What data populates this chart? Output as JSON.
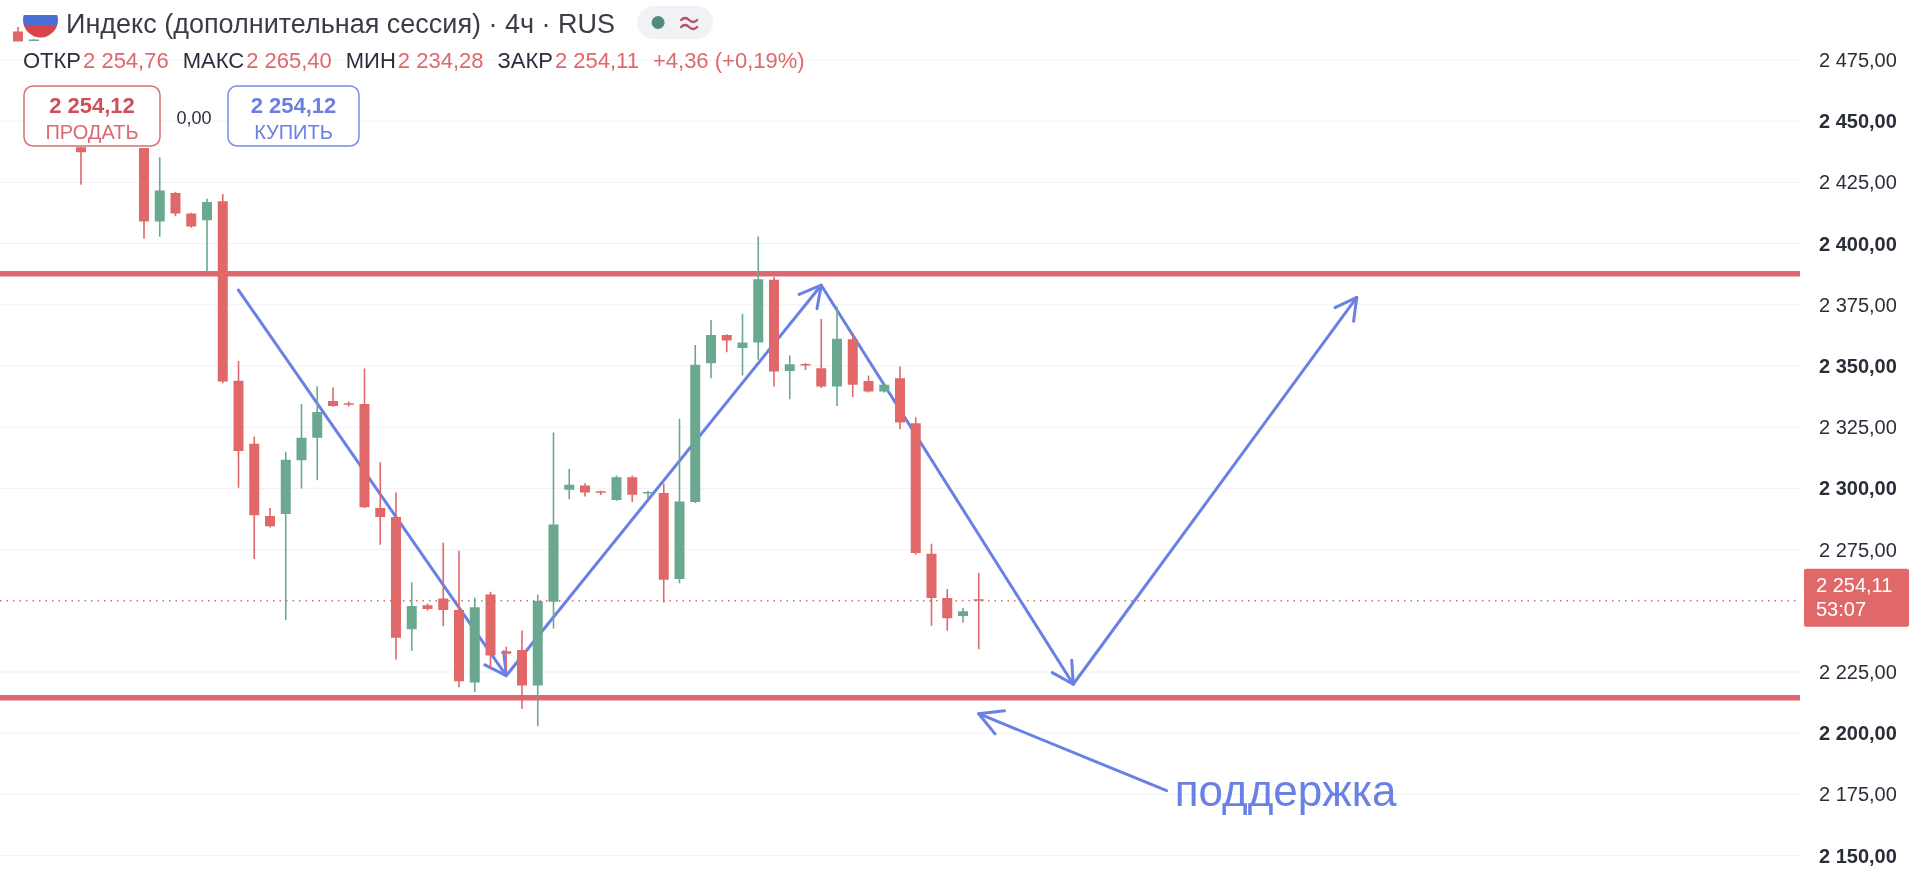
{
  "chart_data": {
    "type": "candlestick",
    "title": "Индекс (дополнительная сессия) · 4ч · RUS",
    "annotations": [
      "ОТКР",
      "2 254,76",
      "МАКС",
      "2 265,40",
      "МИН",
      "2 234,28",
      "ЗАКР",
      "2 254,11",
      "+4,36 (+0,19%)",
      "2 254,12",
      "ПРОДАТЬ",
      "0,00",
      "2 254,12",
      "КУПИТЬ"
    ],
    "categories": [
      null,
      null,
      null,
      null,
      null,
      null,
      null,
      null,
      null,
      null,
      null,
      null,
      null,
      null,
      null,
      null,
      null,
      null,
      null,
      null,
      null,
      null,
      null,
      null,
      null,
      null,
      null,
      null,
      null,
      null,
      null,
      null,
      null,
      null,
      null,
      null,
      null,
      null,
      null,
      null,
      null,
      null,
      null,
      null,
      null,
      null,
      null,
      null,
      null,
      null,
      null,
      null,
      null,
      null,
      null,
      null,
      null,
      null,
      null,
      null,
      null,
      null,
      null,
      null,
      null,
      null,
      null,
      null,
      null,
      null,
      null,
      null,
      null,
      null,
      null,
      null,
      null,
      null,
      null,
      null,
      null,
      null,
      null,
      null,
      null,
      null,
      null,
      null,
      null,
      null,
      null,
      null,
      null,
      null,
      null,
      null,
      null,
      null,
      null,
      null,
      null,
      null,
      null,
      null,
      null,
      null,
      null,
      null,
      null,
      null,
      null,
      null,
      null
    ],
    "ohlc": [
      [
        2486.6,
        2488.5,
        2482.5,
        2482.5
      ],
      [
        2483.0,
        2483.6,
        2482.8,
        2483.4
      ],
      null,
      null,
      [
        2439.3,
        2439.5,
        2424.0,
        2437.3
      ],
      null,
      null,
      null,
      [
        2439.0,
        2439.0,
        2402.0,
        2409.0
      ],
      [
        2409.0,
        2435.3,
        2402.8,
        2421.7
      ],
      [
        2420.7,
        2421.2,
        2411.2,
        2412.3
      ],
      [
        2412.3,
        2412.6,
        2406.5,
        2407.0
      ],
      [
        2409.5,
        2418.3,
        2388.7,
        2417.0
      ],
      [
        2417.3,
        2420.3,
        2343.0,
        2343.7
      ],
      [
        2344.0,
        2352.0,
        2300.3,
        2315.3
      ],
      [
        2318.2,
        2321.2,
        2271.2,
        2289.0
      ],
      [
        2288.7,
        2292.0,
        2284.0,
        2284.5
      ],
      [
        2289.5,
        2315.0,
        2246.2,
        2311.7
      ],
      [
        2311.5,
        2334.5,
        2300.0,
        2320.7
      ],
      [
        2320.7,
        2341.7,
        2303.3,
        2331.2
      ],
      [
        2335.7,
        2341.2,
        2333.3,
        2333.7
      ],
      [
        2334.8,
        2335.5,
        2333.5,
        2334.2
      ],
      [
        2334.5,
        2349.0,
        2292.0,
        2292.3
      ],
      [
        2292.0,
        2310.7,
        2277.0,
        2288.3
      ],
      [
        2288.3,
        2298.3,
        2230.0,
        2239.0
      ],
      [
        2242.5,
        2261.7,
        2233.7,
        2252.0
      ],
      [
        2252.3,
        2253.0,
        2250.0,
        2250.7
      ],
      [
        2255.0,
        2277.8,
        2243.7,
        2250.3
      ],
      [
        2250.3,
        2274.5,
        2218.7,
        2221.2
      ],
      [
        2220.7,
        2255.3,
        2216.7,
        2251.5
      ],
      [
        2256.7,
        2257.8,
        2226.2,
        2231.7
      ],
      [
        2233.5,
        2235.3,
        2226.2,
        2232.5
      ],
      [
        2234.0,
        2242.0,
        2210.0,
        2219.5
      ],
      [
        2219.5,
        2256.7,
        2202.8,
        2254.0
      ],
      [
        2253.7,
        2322.8,
        2242.8,
        2285.3
      ],
      [
        2299.4,
        2307.9,
        2295.6,
        2301.5
      ],
      [
        2301.2,
        2302.1,
        2296.7,
        2298.3
      ],
      [
        2298.8,
        2299.0,
        2297.3,
        2298.2
      ],
      [
        2295.3,
        2305.3,
        2295.0,
        2304.6
      ],
      [
        2304.6,
        2305.3,
        2294.4,
        2297.4
      ],
      [
        2298.2,
        2299.0,
        2296.0,
        2298.5
      ],
      [
        2298.1,
        2301.9,
        2253.4,
        2262.7
      ],
      [
        2263.0,
        2328.4,
        2261.3,
        2294.6
      ],
      [
        2294.4,
        2358.6,
        2294.0,
        2350.5
      ],
      [
        2351.1,
        2368.8,
        2345.0,
        2362.7
      ],
      [
        2362.7,
        2363.0,
        2355.6,
        2360.4
      ],
      [
        2357.3,
        2371.3,
        2346.1,
        2359.6
      ],
      [
        2359.6,
        2402.9,
        2352.5,
        2385.4
      ],
      [
        2385.2,
        2386.3,
        2341.6,
        2347.7
      ],
      [
        2348.0,
        2354.3,
        2336.4,
        2350.7
      ],
      [
        2350.8,
        2351.2,
        2348.4,
        2350.2
      ],
      [
        2349.1,
        2369.2,
        2341.0,
        2341.6
      ],
      [
        2341.6,
        2374.3,
        2333.7,
        2361.1
      ],
      [
        2360.9,
        2363.4,
        2337.3,
        2342.3
      ],
      [
        2343.9,
        2346.1,
        2339.2,
        2339.6
      ],
      [
        2339.6,
        2342.8,
        2339.2,
        2342.3
      ],
      [
        2345.0,
        2349.8,
        2324.2,
        2326.9
      ],
      [
        2326.6,
        2329.1,
        2272.9,
        2273.6
      ],
      [
        2273.3,
        2277.4,
        2243.9,
        2255.2
      ],
      [
        2255.2,
        2258.9,
        2241.8,
        2247.0
      ],
      [
        2247.9,
        2251.1,
        2245.2,
        2249.8
      ],
      [
        2254.76,
        2265.4,
        2234.28,
        2254.11
      ],
      null,
      null,
      null,
      null,
      null,
      null,
      null,
      null,
      null,
      null,
      null,
      null,
      null,
      null,
      null,
      null,
      null,
      null,
      null,
      null,
      null,
      null,
      null,
      null,
      null,
      null,
      null,
      null,
      null,
      null,
      null,
      null,
      null,
      null,
      null,
      null,
      null,
      null,
      null,
      null,
      null,
      null,
      null,
      null,
      null,
      null,
      null,
      null,
      null,
      null,
      null
    ],
    "colors": [
      "#e06868",
      "#6aa88f",
      null,
      null,
      "#e06868",
      null,
      null,
      null,
      "#e06868",
      "#6aa88f",
      "#e06868",
      "#e06868",
      "#6aa88f",
      "#e06868",
      "#e06868",
      "#e06868",
      "#e06868",
      "#6aa88f",
      "#6aa88f",
      "#6aa88f",
      "#e06868",
      "#e06868",
      "#e06868",
      "#e06868",
      "#e06868",
      "#6aa88f",
      "#e06868",
      "#e06868",
      "#e06868",
      "#6aa88f",
      "#e06868",
      "#e06868",
      "#e06868",
      "#6aa88f",
      "#6aa88f",
      "#6aa88f",
      "#e06868",
      "#e06868",
      "#6aa88f",
      "#e06868",
      "#6aa88f",
      "#e06868",
      "#6aa88f",
      "#6aa88f",
      "#6aa88f",
      "#e06868",
      "#6aa88f",
      "#6aa88f",
      "#e06868",
      "#6aa88f",
      "#e06868",
      "#e06868",
      "#6aa88f",
      "#e06868",
      "#e06868",
      "#6aa88f",
      "#e06868",
      "#e06868",
      "#e06868",
      "#e06868",
      "#6aa88f",
      "#e06868",
      null,
      null,
      null,
      null,
      null,
      null,
      null,
      null,
      null,
      null,
      null,
      null,
      null,
      null,
      null,
      null,
      null,
      null,
      null,
      null,
      null,
      null,
      null,
      null,
      null,
      null,
      null,
      null,
      null,
      null,
      null,
      null,
      null,
      null,
      null,
      null,
      null,
      null,
      null,
      null,
      null,
      null,
      null,
      null,
      null,
      null,
      null,
      null,
      null,
      null,
      null
    ],
    "series": [
      {
        "type": "line",
        "color": "#6b80e4",
        "values": [
          null,
          null,
          null,
          null,
          null,
          null,
          null,
          null,
          null,
          null,
          null,
          null,
          null,
          null,
          2381,
          null,
          null,
          null,
          null,
          null,
          null,
          null,
          null,
          null,
          null,
          null,
          null,
          null,
          null,
          null,
          null,
          2223.5,
          null,
          null,
          null,
          null,
          null,
          null,
          null,
          null,
          null,
          null,
          null,
          null,
          null,
          null,
          null,
          null,
          null,
          null,
          null,
          2383,
          null,
          null,
          null,
          null,
          null,
          null,
          null,
          null,
          null,
          null,
          null,
          null,
          null,
          null,
          null,
          2220,
          null,
          null,
          null,
          null,
          null,
          null,
          null,
          null,
          null,
          null,
          null,
          null,
          null,
          null,
          null,
          null,
          null,
          2378,
          null,
          null,
          null,
          null,
          null,
          null,
          null,
          null,
          null,
          null,
          null,
          null,
          null,
          null,
          null,
          null,
          null,
          null,
          null,
          null,
          null,
          null,
          null,
          null,
          null,
          null,
          null
        ]
      }
    ],
    "ylim": [
      2133.5,
      2499.5
    ],
    "yticks": [
      {
        "value": 2150,
        "label": "2 150,00"
      },
      {
        "value": 2175,
        "label": "2 175,00"
      },
      {
        "value": 2200,
        "label": "2 200,00"
      },
      {
        "value": 2225,
        "label": "2 225,00"
      },
      {
        "value": 2275,
        "label": "2 275,00"
      },
      {
        "value": 2300,
        "label": "2 300,00"
      },
      {
        "value": 2325,
        "label": "2 325,00"
      },
      {
        "value": 2350,
        "label": "2 350,00"
      },
      {
        "value": 2375,
        "label": "2 375,00"
      },
      {
        "value": 2400,
        "label": "2 400,00"
      },
      {
        "value": 2425,
        "label": "2 425,00"
      },
      {
        "value": 2450,
        "label": "2 450,00"
      },
      {
        "value": 2475,
        "label": "2 475,00"
      }
    ],
    "grid": "y",
    "ref_lines": [
      {
        "axis": "y",
        "value": 2387.7,
        "color": "#e0676f"
      },
      {
        "axis": "y",
        "value": 2214.5,
        "label": "поддержка",
        "color": "#e0676f"
      },
      {
        "axis": "y",
        "value": 2254.11,
        "label": "2 254,11\n53:07",
        "color": "#e06868",
        "line_style": "dotted"
      }
    ]
  }
}
